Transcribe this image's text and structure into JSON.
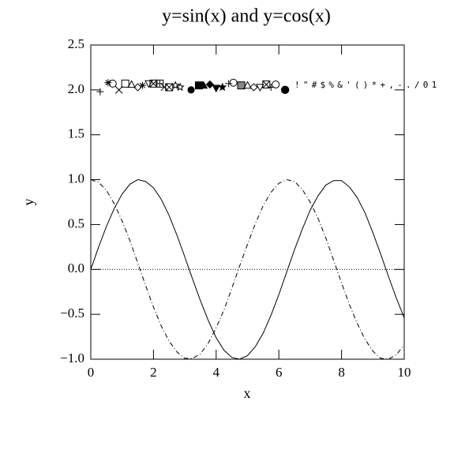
{
  "chart_data": {
    "type": "line",
    "title": "y=sin(x) and y=cos(x)",
    "x_label": "x",
    "y_label": "y",
    "x": [
      0,
      0.25,
      0.5,
      0.75,
      1,
      1.25,
      1.5,
      1.75,
      2,
      2.25,
      2.5,
      2.75,
      3,
      3.25,
      3.5,
      3.75,
      4,
      4.25,
      4.5,
      4.75,
      5,
      5.25,
      5.5,
      5.75,
      6,
      6.25,
      6.5,
      6.75,
      7,
      7.25,
      7.5,
      7.75,
      8,
      8.25,
      8.5,
      8.75,
      9,
      9.25,
      9.5,
      9.75,
      10
    ],
    "series": [
      {
        "color": "#000000",
        "style": "solid",
        "values": [
          0,
          0.25,
          0.48,
          0.68,
          0.84,
          0.95,
          1.0,
          0.98,
          0.91,
          0.78,
          0.6,
          0.38,
          0.14,
          -0.11,
          -0.35,
          -0.57,
          -0.76,
          -0.9,
          -0.98,
          -1.0,
          -0.96,
          -0.86,
          -0.71,
          -0.51,
          -0.28,
          -0.03,
          0.22,
          0.45,
          0.66,
          0.82,
          0.94,
          0.99,
          0.99,
          0.92,
          0.8,
          0.63,
          0.41,
          0.17,
          -0.08,
          -0.32,
          -0.54
        ]
      },
      {
        "color": "#000000",
        "style": "dashdot",
        "values": [
          1,
          0.97,
          0.88,
          0.73,
          0.54,
          0.32,
          0.07,
          -0.18,
          -0.42,
          -0.63,
          -0.8,
          -0.92,
          -0.99,
          -0.99,
          -0.94,
          -0.82,
          -0.65,
          -0.45,
          -0.21,
          0.04,
          0.28,
          0.51,
          0.71,
          0.86,
          0.96,
          1.0,
          0.98,
          0.89,
          0.75,
          0.57,
          0.35,
          0.1,
          -0.15,
          -0.39,
          -0.6,
          -0.78,
          -0.91,
          -0.99,
          -1.0,
          -0.95,
          -0.84
        ]
      }
    ],
    "hline": 0,
    "symbols": {
      "x": [
        0.3,
        0.55,
        0.7,
        0.9,
        1.1,
        1.3,
        1.5,
        1.65,
        1.85,
        2.0,
        2.2,
        2.35,
        2.5,
        2.7,
        2.85,
        3.2,
        3.45,
        3.6,
        3.8,
        4.0,
        4.2,
        4.4,
        4.55,
        4.8,
        5.0,
        5.2,
        5.4,
        5.6,
        5.75,
        5.9,
        6.2
      ],
      "y": [
        1.98,
        2.08,
        2.07,
        2.0,
        2.07,
        2.06,
        2.03,
        2.05,
        2.07,
        2.07,
        2.07,
        2.03,
        2.03,
        2.05,
        2.03,
        2.0,
        2.05,
        2.05,
        2.06,
        2.02,
        2.03,
        2.07,
        2.08,
        2.05,
        2.05,
        2.03,
        2.03,
        2.06,
        2.03,
        2.06,
        2.0
      ],
      "shapes": [
        "plus",
        "asterisk",
        "circle",
        "cross",
        "square",
        "triangle",
        "diamond",
        "asterisk",
        "triangle-down",
        "square-x",
        "square-plus",
        "cross",
        "square-x",
        "star",
        "star",
        "dot",
        "filled-square",
        "filled-triangle",
        "filled-diamond",
        "filled-triangle-down",
        "filled-star",
        "plus",
        "circle",
        "gray-square",
        "triangle",
        "diamond",
        "triangle-down",
        "square-x",
        "plus",
        "circle",
        "big-dot"
      ]
    },
    "annotation": {
      "text": "! \" # $ % & ' ( ) * + , - . / 0 1",
      "x": 6.5,
      "y": 2.05
    },
    "xlim": [
      0,
      10
    ],
    "ylim": [
      -1.0,
      2.5
    ],
    "xticks": [
      0,
      2,
      4,
      6,
      8,
      10
    ],
    "yticks": [
      {
        "value": -1.0,
        "label": "−1.0"
      },
      {
        "value": -0.5,
        "label": "−0.5"
      },
      {
        "value": 0.0,
        "label": "0.0"
      },
      0.5,
      {
        "value": 1.0,
        "label": "1.0"
      },
      1.5,
      {
        "value": 2.0,
        "label": "2.0"
      },
      2.5
    ]
  }
}
